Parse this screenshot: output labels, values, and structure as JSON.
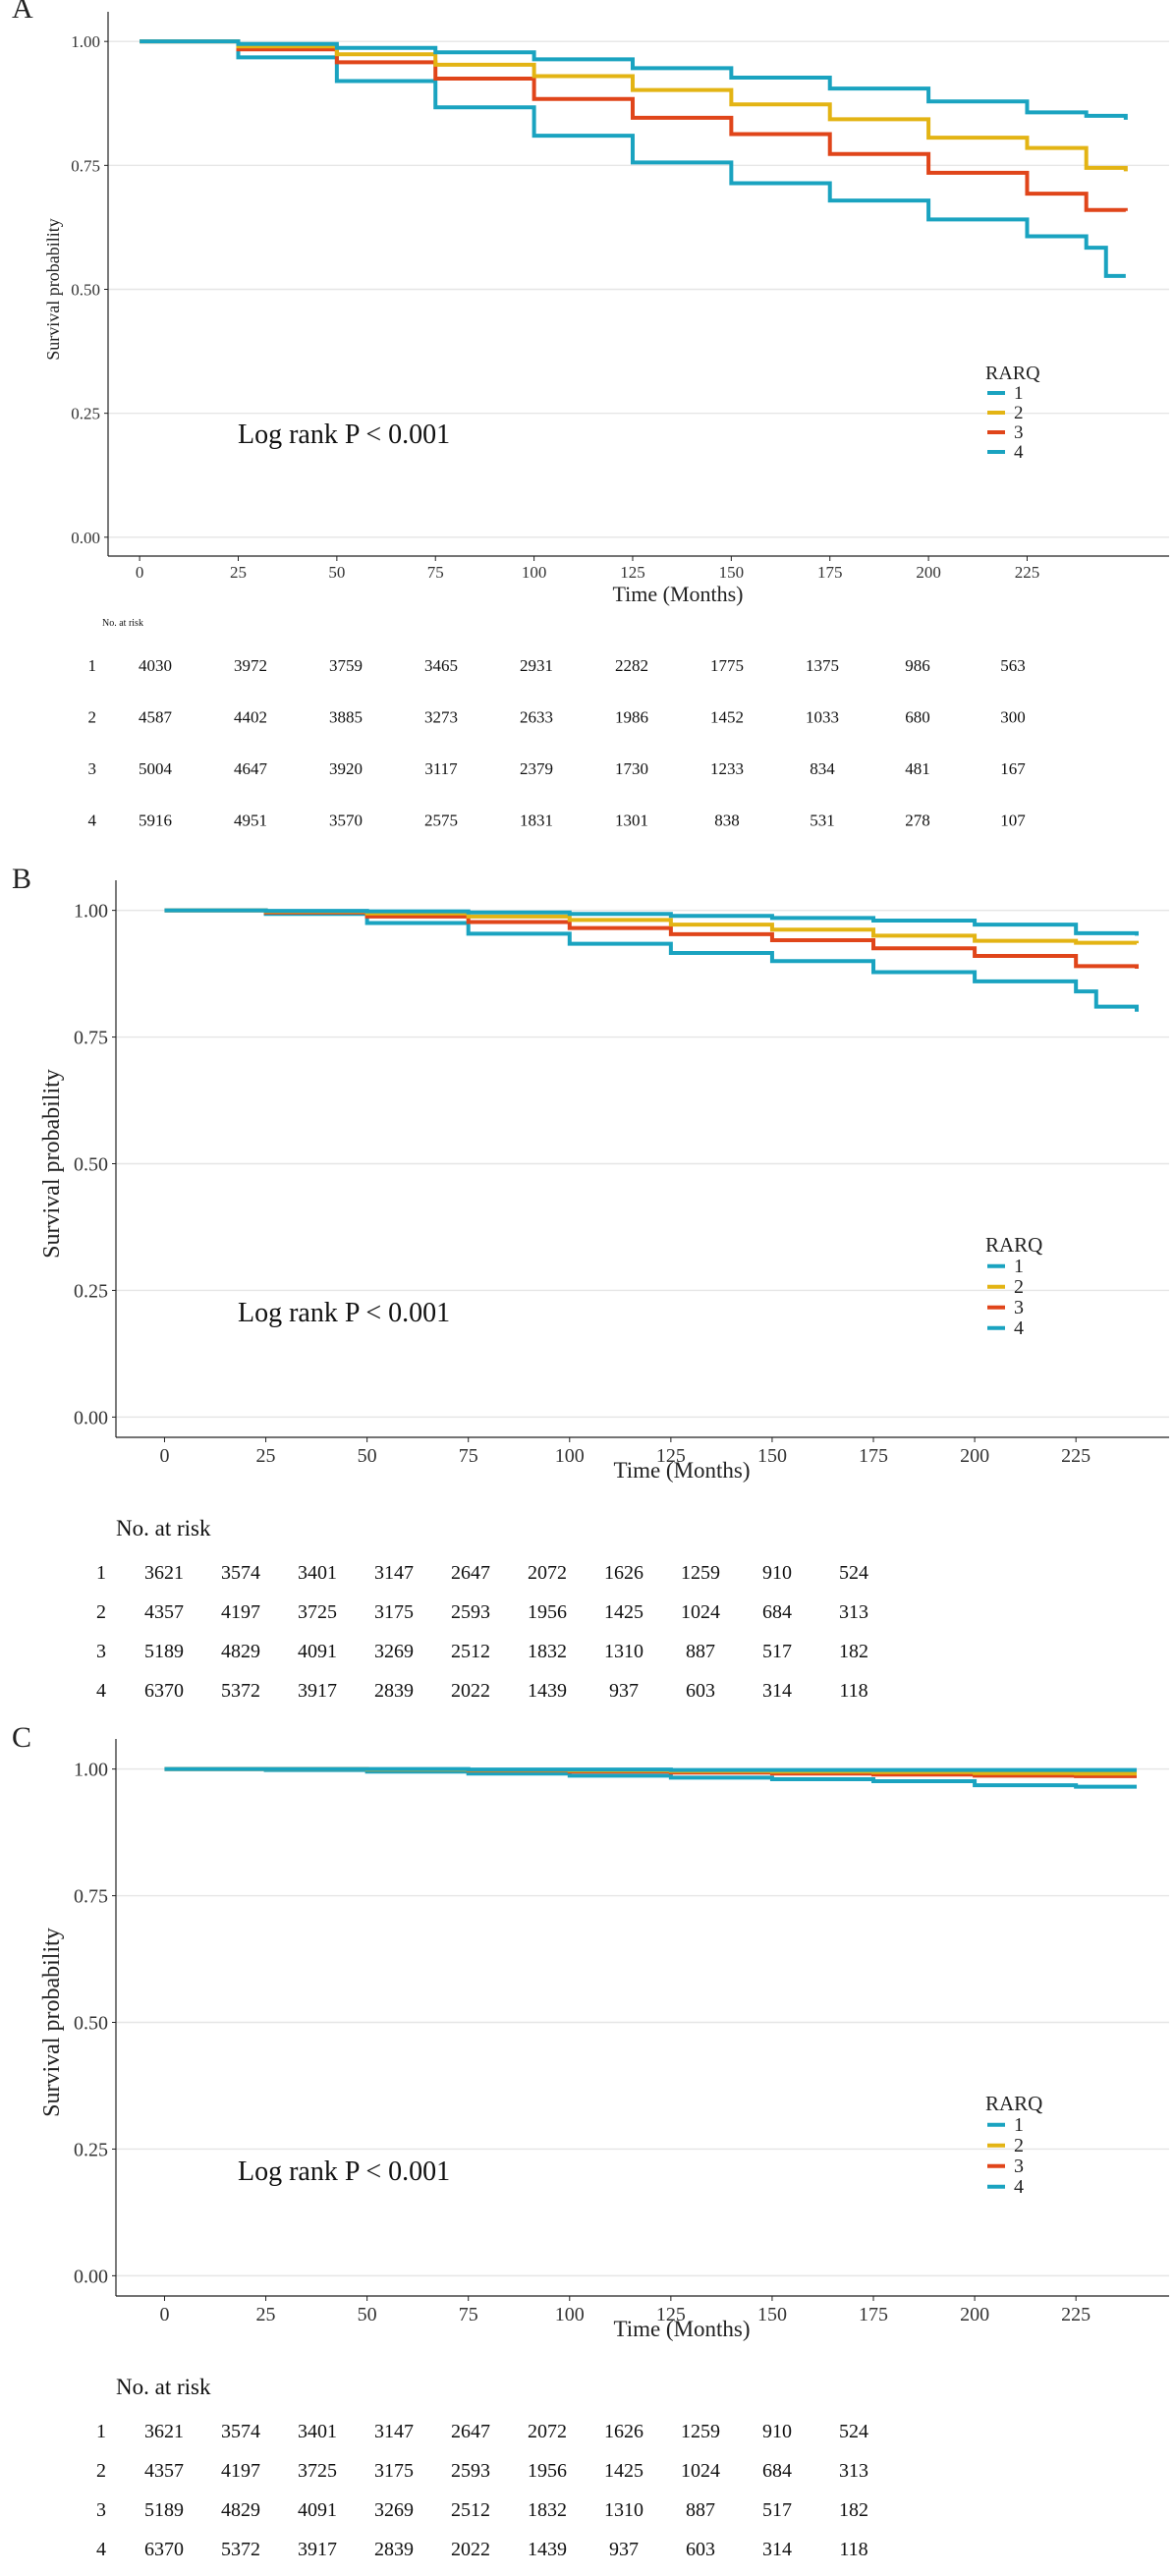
{
  "colors": {
    "group1": "#1aa3c0",
    "group2": "#e3b414",
    "group3": "#e0451a",
    "group4": "#1aa3c0",
    "grid": "#e6e6e6",
    "axis": "#222222"
  },
  "chart_data": [
    {
      "type": "line",
      "panel_label": "A",
      "xlabel": "Time (Months)",
      "ylabel": "Survival probability",
      "xlim": [
        -8,
        261
      ],
      "ylim": [
        -0.04,
        1.04
      ],
      "x_ticks": [
        0,
        25,
        50,
        75,
        100,
        125,
        150,
        175,
        200,
        225
      ],
      "x_tick_labels": [
        "0",
        "25",
        "50",
        "75",
        "100",
        "125",
        "150",
        "175",
        "200",
        "225"
      ],
      "y_ticks": [
        0,
        0.25,
        0.5,
        0.75,
        1
      ],
      "y_tick_labels": [
        "0.00",
        "0.25",
        "0.50",
        "0.75",
        "1.00"
      ],
      "annotation": "Log rank P < 0.001",
      "legend": {
        "title": "RARQ",
        "labels": [
          "1",
          "2",
          "3",
          "4"
        ],
        "position": "right"
      },
      "series": [
        {
          "name": "1",
          "x": [
            0,
            25,
            50,
            75,
            100,
            125,
            150,
            175,
            200,
            225,
            240,
            250
          ],
          "y": [
            1.0,
            0.995,
            0.987,
            0.978,
            0.964,
            0.946,
            0.927,
            0.905,
            0.879,
            0.857,
            0.85,
            0.842
          ]
        },
        {
          "name": "2",
          "x": [
            0,
            25,
            50,
            75,
            100,
            125,
            150,
            175,
            200,
            225,
            240,
            250
          ],
          "y": [
            1.0,
            0.99,
            0.974,
            0.953,
            0.93,
            0.902,
            0.873,
            0.843,
            0.806,
            0.785,
            0.745,
            0.738
          ]
        },
        {
          "name": "3",
          "x": [
            0,
            25,
            50,
            75,
            100,
            125,
            150,
            175,
            200,
            225,
            240,
            250
          ],
          "y": [
            1.0,
            0.984,
            0.958,
            0.925,
            0.884,
            0.846,
            0.813,
            0.773,
            0.735,
            0.693,
            0.66,
            0.658
          ]
        },
        {
          "name": "4",
          "x": [
            0,
            25,
            50,
            75,
            100,
            125,
            150,
            175,
            200,
            225,
            240,
            245,
            250
          ],
          "y": [
            1.0,
            0.968,
            0.92,
            0.867,
            0.81,
            0.756,
            0.714,
            0.679,
            0.641,
            0.607,
            0.584,
            0.527,
            0.527
          ]
        }
      ],
      "risk_table": {
        "title": "No. at risk",
        "times": [
          0,
          25,
          50,
          75,
          100,
          125,
          150,
          175,
          200,
          225
        ],
        "rows": [
          {
            "label": "1",
            "values": [
              "4030",
              "3972",
              "3759",
              "3465",
              "2931",
              "2282",
              "1775",
              "1375",
              "986",
              "563"
            ]
          },
          {
            "label": "2",
            "values": [
              "4587",
              "4402",
              "3885",
              "3273",
              "2633",
              "1986",
              "1452",
              "1033",
              "680",
              "300"
            ]
          },
          {
            "label": "3",
            "values": [
              "5004",
              "4647",
              "3920",
              "3117",
              "2379",
              "1730",
              "1233",
              "834",
              "481",
              "167"
            ]
          },
          {
            "label": "4",
            "values": [
              "5916",
              "4951",
              "3570",
              "2575",
              "1831",
              "1301",
              "838",
              "531",
              "278",
              "107"
            ]
          }
        ]
      }
    },
    {
      "type": "line",
      "panel_label": "B",
      "xlabel": "Time (Months)",
      "ylabel": "Survival probability",
      "xlim": [
        -12,
        248
      ],
      "ylim": [
        -0.04,
        1.04
      ],
      "x_ticks": [
        0,
        25,
        50,
        75,
        100,
        125,
        150,
        175,
        200,
        225
      ],
      "x_tick_labels": [
        "0",
        "25",
        "50",
        "75",
        "100",
        "125",
        "150",
        "175",
        "200",
        "225"
      ],
      "y_ticks": [
        0,
        0.25,
        0.5,
        0.75,
        1
      ],
      "y_tick_labels": [
        "0.00",
        "0.25",
        "0.50",
        "0.75",
        "1.00"
      ],
      "annotation": "Log rank P < 0.001",
      "legend": {
        "title": "RARQ",
        "labels": [
          "1",
          "2",
          "3",
          "4"
        ],
        "position": "right"
      },
      "series": [
        {
          "name": "1",
          "x": [
            0,
            25,
            50,
            75,
            100,
            125,
            150,
            175,
            200,
            225,
            240
          ],
          "y": [
            1.0,
            0.999,
            0.998,
            0.996,
            0.993,
            0.989,
            0.985,
            0.98,
            0.972,
            0.955,
            0.95
          ]
        },
        {
          "name": "2",
          "x": [
            0,
            25,
            50,
            75,
            100,
            125,
            150,
            175,
            200,
            225,
            240
          ],
          "y": [
            1.0,
            0.998,
            0.994,
            0.988,
            0.981,
            0.972,
            0.962,
            0.95,
            0.94,
            0.936,
            0.935
          ]
        },
        {
          "name": "3",
          "x": [
            0,
            25,
            50,
            75,
            100,
            125,
            150,
            175,
            200,
            225,
            240
          ],
          "y": [
            1.0,
            0.996,
            0.988,
            0.977,
            0.965,
            0.953,
            0.941,
            0.925,
            0.91,
            0.89,
            0.885
          ]
        },
        {
          "name": "4",
          "x": [
            0,
            25,
            50,
            75,
            100,
            125,
            150,
            175,
            200,
            225,
            230,
            240
          ],
          "y": [
            1.0,
            0.993,
            0.975,
            0.954,
            0.934,
            0.916,
            0.9,
            0.878,
            0.86,
            0.84,
            0.81,
            0.8
          ]
        }
      ],
      "risk_table": {
        "title": "No. at risk",
        "times": [
          0,
          25,
          50,
          75,
          100,
          125,
          150,
          175,
          200,
          225
        ],
        "rows": [
          {
            "label": "1",
            "values": [
              "3621",
              "3574",
              "3401",
              "3147",
              "2647",
              "2072",
              "1626",
              "1259",
              "910",
              "524"
            ]
          },
          {
            "label": "2",
            "values": [
              "4357",
              "4197",
              "3725",
              "3175",
              "2593",
              "1956",
              "1425",
              "1024",
              "684",
              "313"
            ]
          },
          {
            "label": "3",
            "values": [
              "5189",
              "4829",
              "4091",
              "3269",
              "2512",
              "1832",
              "1310",
              "887",
              "517",
              "182"
            ]
          },
          {
            "label": "4",
            "values": [
              "6370",
              "5372",
              "3917",
              "2839",
              "2022",
              "1439",
              "937",
              "603",
              "314",
              "118"
            ]
          }
        ]
      }
    },
    {
      "type": "line",
      "panel_label": "C",
      "xlabel": "Time (Months)",
      "ylabel": "Survival probability",
      "xlim": [
        -12,
        248
      ],
      "ylim": [
        -0.04,
        1.04
      ],
      "x_ticks": [
        0,
        25,
        50,
        75,
        100,
        125,
        150,
        175,
        200,
        225
      ],
      "x_tick_labels": [
        "0",
        "25",
        "50",
        "75",
        "100",
        "125",
        "150",
        "175",
        "200",
        "225"
      ],
      "y_ticks": [
        0,
        0.25,
        0.5,
        0.75,
        1
      ],
      "y_tick_labels": [
        "0.00",
        "0.25",
        "0.50",
        "0.75",
        "1.00"
      ],
      "annotation": "Log rank P < 0.001",
      "legend": {
        "title": "RARQ",
        "labels": [
          "1",
          "2",
          "3",
          "4"
        ],
        "position": "right"
      },
      "series": [
        {
          "name": "1",
          "x": [
            0,
            25,
            50,
            75,
            100,
            125,
            150,
            175,
            200,
            225,
            240
          ],
          "y": [
            1.0,
            1.0,
            1.0,
            0.999,
            0.999,
            0.998,
            0.998,
            0.998,
            0.998,
            0.998,
            0.998
          ]
        },
        {
          "name": "2",
          "x": [
            0,
            25,
            50,
            75,
            100,
            125,
            150,
            175,
            200,
            225,
            240
          ],
          "y": [
            1.0,
            1.0,
            0.999,
            0.998,
            0.997,
            0.996,
            0.995,
            0.994,
            0.992,
            0.991,
            0.991
          ]
        },
        {
          "name": "3",
          "x": [
            0,
            25,
            50,
            75,
            100,
            125,
            150,
            175,
            200,
            225,
            240
          ],
          "y": [
            1.0,
            1.0,
            0.999,
            0.997,
            0.995,
            0.993,
            0.991,
            0.989,
            0.987,
            0.986,
            0.986
          ]
        },
        {
          "name": "4",
          "x": [
            0,
            25,
            50,
            75,
            100,
            125,
            150,
            175,
            200,
            225,
            240
          ],
          "y": [
            1.0,
            0.998,
            0.995,
            0.991,
            0.987,
            0.983,
            0.98,
            0.976,
            0.968,
            0.965,
            0.965
          ]
        }
      ],
      "risk_table": {
        "title": "No. at risk",
        "times": [
          0,
          25,
          50,
          75,
          100,
          125,
          150,
          175,
          200,
          225
        ],
        "rows": [
          {
            "label": "1",
            "values": [
              "3621",
              "3574",
              "3401",
              "3147",
              "2647",
              "2072",
              "1626",
              "1259",
              "910",
              "524"
            ]
          },
          {
            "label": "2",
            "values": [
              "4357",
              "4197",
              "3725",
              "3175",
              "2593",
              "1956",
              "1425",
              "1024",
              "684",
              "313"
            ]
          },
          {
            "label": "3",
            "values": [
              "5189",
              "4829",
              "4091",
              "3269",
              "2512",
              "1832",
              "1310",
              "887",
              "517",
              "182"
            ]
          },
          {
            "label": "4",
            "values": [
              "6370",
              "5372",
              "3917",
              "2839",
              "2022",
              "1439",
              "937",
              "603",
              "314",
              "118"
            ]
          }
        ]
      }
    }
  ]
}
